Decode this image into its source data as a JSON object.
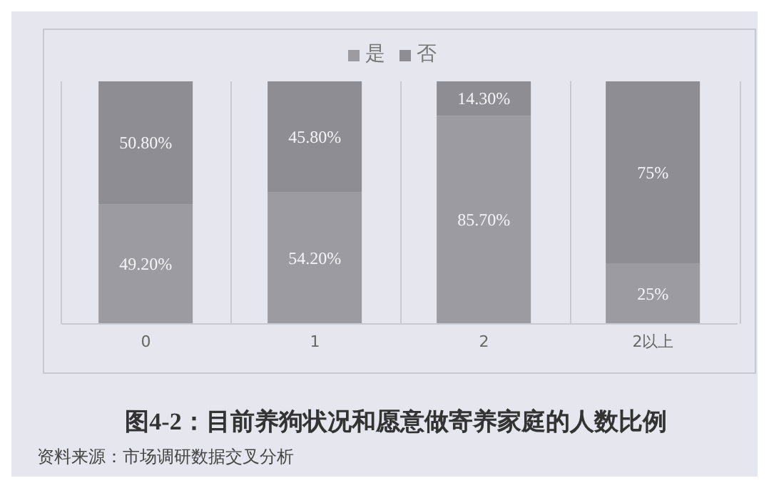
{
  "chart_data": {
    "type": "bar",
    "stacked": true,
    "title": "图4-2：目前养狗状况和愿意做寄养家庭的人数比例",
    "annotations": [
      "资料来源：市场调研数据交叉分析"
    ],
    "categories": [
      "0",
      "1",
      "2",
      "2以上"
    ],
    "series": [
      {
        "name": "是",
        "color": "#9b9ba1",
        "values": [
          49.2,
          54.2,
          85.7,
          25
        ],
        "value_labels": [
          "49.20%",
          "54.20%",
          "85.70%",
          "25%"
        ]
      },
      {
        "name": "否",
        "color": "#8d8d93",
        "values": [
          50.8,
          45.8,
          14.3,
          75
        ],
        "value_labels": [
          "50.80%",
          "45.80%",
          "14.30%",
          "75%"
        ]
      }
    ],
    "legend": "top",
    "grid": "x"
  }
}
